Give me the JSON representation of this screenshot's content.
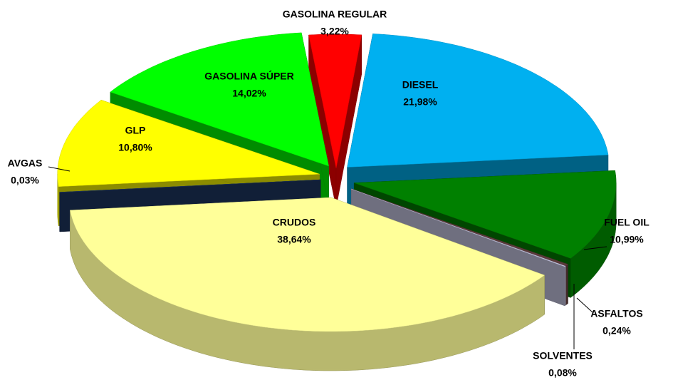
{
  "chart_data": {
    "type": "pie3d",
    "categories": [
      "GASOLINA REGULAR",
      "DIESEL",
      "FUEL OIL",
      "ASFALTOS",
      "SOLVENTES",
      "CRUDOS",
      "AVGAS",
      "GLP",
      "GASOLINA SÚPER"
    ],
    "values": [
      3.22,
      21.98,
      10.99,
      0.24,
      0.08,
      38.64,
      0.03,
      10.8,
      14.02
    ],
    "value_labels": [
      "3,22%",
      "21,98%",
      "10,99%",
      "0,24%",
      "0,08%",
      "38,64%",
      "0,03%",
      "10,80%",
      "14,02%"
    ],
    "colors": [
      "#ff0000",
      "#00b0f0",
      "#008000",
      "#5b3b3b",
      "#c9c9e6",
      "#ffff99",
      "#1f3864",
      "#ffff00",
      "#00ff00"
    ]
  }
}
